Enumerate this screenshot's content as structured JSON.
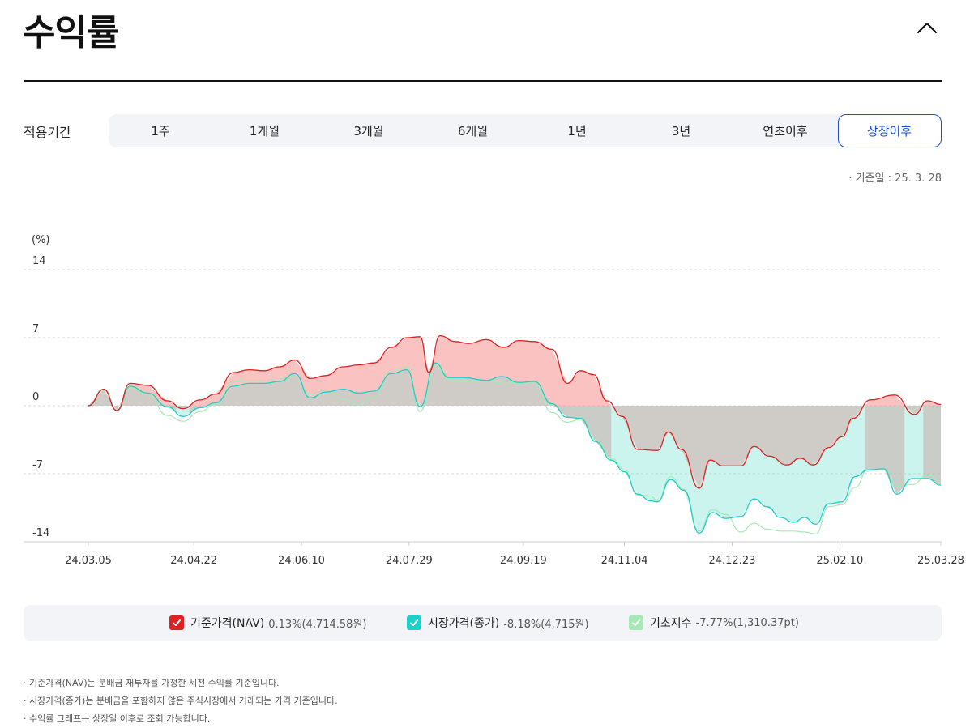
{
  "header": {
    "title": "수익률"
  },
  "period": {
    "label": "적용기간",
    "options": [
      "1주",
      "1개월",
      "3개월",
      "6개월",
      "1년",
      "3년",
      "연초이후",
      "상장이후"
    ],
    "selected": "상장이후"
  },
  "base_date": "· 기준일 : 25. 3. 28",
  "legend": [
    {
      "name": "기준가격(NAV)",
      "value": "0.13%(4,714.58원)",
      "color": "#e02020"
    },
    {
      "name": "시장가격(종가)",
      "value": "-8.18%(4,715원)",
      "color": "#1ccfc7"
    },
    {
      "name": "기초지수",
      "value": "-7.77%(1,310.37pt)",
      "color": "#a6e8b6"
    }
  ],
  "notes": [
    "기준가격(NAV)는 분배금 재투자를 가정한 세전 수익률 기준입니다.",
    "시장가격(종가)는 분배금을 포함하지 않은 주식시장에서 거래되는 가격 기준입니다.",
    "수익률 그래프는 상장일 이후로 조회 가능합니다."
  ],
  "chart_data": {
    "type": "area",
    "unit": "(%)",
    "ylim": [
      -14,
      14
    ],
    "yticks": [
      14,
      7,
      0,
      -7,
      -14
    ],
    "xlim": [
      0,
      388
    ],
    "xticks": [
      {
        "pos": 0,
        "label": "24.03.05"
      },
      {
        "pos": 48,
        "label": "24.04.22"
      },
      {
        "pos": 97,
        "label": "24.06.10"
      },
      {
        "pos": 146,
        "label": "24.07.29"
      },
      {
        "pos": 198,
        "label": "24.09.19"
      },
      {
        "pos": 244,
        "label": "24.11.04"
      },
      {
        "pos": 293,
        "label": "24.12.23"
      },
      {
        "pos": 342,
        "label": "25.02.10"
      },
      {
        "pos": 388,
        "label": "25.03.28"
      }
    ],
    "grid": "dashed-horizontal",
    "fill_between": "NAV vs 시장가격(종가)",
    "series": [
      {
        "name": "기준가격(NAV)",
        "color": "#e02020",
        "points": [
          [
            0,
            0
          ],
          [
            7,
            1.7
          ],
          [
            13,
            -0.5
          ],
          [
            19,
            2.3
          ],
          [
            27,
            2.1
          ],
          [
            36,
            0.5
          ],
          [
            43,
            -0.3
          ],
          [
            51,
            0.6
          ],
          [
            58,
            1.2
          ],
          [
            66,
            3.4
          ],
          [
            73,
            3.7
          ],
          [
            80,
            3.6
          ],
          [
            87,
            4.0
          ],
          [
            94,
            4.7
          ],
          [
            101,
            2.8
          ],
          [
            108,
            3.1
          ],
          [
            116,
            4.0
          ],
          [
            123,
            4.2
          ],
          [
            130,
            4.4
          ],
          [
            138,
            6.0
          ],
          [
            145,
            7.0
          ],
          [
            151,
            7.1
          ],
          [
            155,
            3.4
          ],
          [
            160,
            7.2
          ],
          [
            167,
            6.6
          ],
          [
            173,
            6.4
          ],
          [
            181,
            6.8
          ],
          [
            189,
            6.0
          ],
          [
            196,
            6.7
          ],
          [
            203,
            6.6
          ],
          [
            211,
            5.8
          ],
          [
            218,
            2.3
          ],
          [
            224,
            3.6
          ],
          [
            230,
            3.2
          ],
          [
            236,
            0.5
          ],
          [
            243,
            -1.1
          ],
          [
            250,
            -4.5
          ],
          [
            259,
            -4.6
          ],
          [
            264,
            -2.7
          ],
          [
            270,
            -4.5
          ],
          [
            278,
            -8.5
          ],
          [
            283,
            -5.6
          ],
          [
            289,
            -6.2
          ],
          [
            297,
            -6.2
          ],
          [
            303,
            -4.2
          ],
          [
            310,
            -5.2
          ],
          [
            318,
            -6.1
          ],
          [
            324,
            -5.4
          ],
          [
            330,
            -6.1
          ],
          [
            337,
            -4.3
          ],
          [
            343,
            -3.2
          ],
          [
            348,
            -1.3
          ],
          [
            356,
            0.6
          ],
          [
            367,
            1.1
          ],
          [
            376,
            -0.9
          ],
          [
            382,
            0.5
          ],
          [
            388,
            0.13
          ]
        ]
      },
      {
        "name": "시장가격(종가)",
        "color": "#1ccfc7",
        "points": [
          [
            0,
            0
          ],
          [
            7,
            1.7
          ],
          [
            13,
            -0.5
          ],
          [
            19,
            2.0
          ],
          [
            27,
            1.3
          ],
          [
            36,
            -0.1
          ],
          [
            43,
            -1.1
          ],
          [
            51,
            -0.2
          ],
          [
            58,
            0.3
          ],
          [
            66,
            2.0
          ],
          [
            73,
            2.3
          ],
          [
            80,
            2.3
          ],
          [
            87,
            2.5
          ],
          [
            94,
            3.3
          ],
          [
            101,
            0.8
          ],
          [
            108,
            1.4
          ],
          [
            116,
            1.7
          ],
          [
            123,
            1.3
          ],
          [
            130,
            1.5
          ],
          [
            138,
            3.3
          ],
          [
            145,
            3.7
          ],
          [
            151,
            -0.1
          ],
          [
            158,
            4.4
          ],
          [
            164,
            2.9
          ],
          [
            171,
            2.9
          ],
          [
            181,
            2.6
          ],
          [
            188,
            3.0
          ],
          [
            196,
            2.4
          ],
          [
            203,
            2.5
          ],
          [
            211,
            0.2
          ],
          [
            218,
            -1.2
          ],
          [
            224,
            -1.3
          ],
          [
            231,
            -3.7
          ],
          [
            238,
            -5.6
          ],
          [
            244,
            -6.8
          ],
          [
            250,
            -9.1
          ],
          [
            256,
            -9.8
          ],
          [
            259,
            -9.9
          ],
          [
            265,
            -7.6
          ],
          [
            271,
            -8.7
          ],
          [
            278,
            -13.1
          ],
          [
            284,
            -11.0
          ],
          [
            290,
            -11.6
          ],
          [
            297,
            -11.4
          ],
          [
            303,
            -9.6
          ],
          [
            309,
            -10.4
          ],
          [
            315,
            -11.5
          ],
          [
            321,
            -12.0
          ],
          [
            326,
            -11.5
          ],
          [
            331,
            -12.2
          ],
          [
            337,
            -10.1
          ],
          [
            343,
            -9.9
          ],
          [
            349,
            -7.3
          ],
          [
            355,
            -6.6
          ],
          [
            362,
            -6.5
          ],
          [
            368,
            -9.1
          ],
          [
            375,
            -7.5
          ],
          [
            382,
            -7.5
          ],
          [
            388,
            -8.18
          ]
        ]
      },
      {
        "name": "기초지수",
        "color": "#a6e8b6",
        "points": [
          [
            0,
            0
          ],
          [
            7,
            1.6
          ],
          [
            13,
            -0.4
          ],
          [
            19,
            1.9
          ],
          [
            27,
            1.1
          ],
          [
            36,
            -1.0
          ],
          [
            43,
            -1.6
          ],
          [
            51,
            -0.6
          ],
          [
            58,
            0.2
          ],
          [
            66,
            2.5
          ],
          [
            73,
            2.6
          ],
          [
            80,
            2.6
          ],
          [
            87,
            2.8
          ],
          [
            94,
            3.0
          ],
          [
            101,
            1.2
          ],
          [
            108,
            1.6
          ],
          [
            116,
            0.7
          ],
          [
            123,
            0.1
          ],
          [
            130,
            0.9
          ],
          [
            138,
            3.6
          ],
          [
            145,
            4.0
          ],
          [
            151,
            -0.6
          ],
          [
            158,
            4.2
          ],
          [
            164,
            2.6
          ],
          [
            171,
            2.5
          ],
          [
            181,
            2.8
          ],
          [
            188,
            2.3
          ],
          [
            196,
            2.4
          ],
          [
            203,
            2.4
          ],
          [
            211,
            -0.7
          ],
          [
            218,
            -1.7
          ],
          [
            224,
            -1.4
          ],
          [
            231,
            -3.5
          ],
          [
            238,
            -5.4
          ],
          [
            244,
            -6.6
          ],
          [
            250,
            -9.2
          ],
          [
            256,
            -9.3
          ],
          [
            259,
            -9.8
          ],
          [
            265,
            -7.3
          ],
          [
            271,
            -8.6
          ],
          [
            278,
            -12.9
          ],
          [
            284,
            -10.7
          ],
          [
            290,
            -11.2
          ],
          [
            297,
            -13.0
          ],
          [
            303,
            -12.1
          ],
          [
            309,
            -12.7
          ],
          [
            315,
            -12.9
          ],
          [
            321,
            -12.9
          ],
          [
            326,
            -13.0
          ],
          [
            331,
            -13.2
          ],
          [
            337,
            -10.4
          ],
          [
            343,
            -10.2
          ],
          [
            349,
            -8.4
          ],
          [
            355,
            -6.5
          ],
          [
            362,
            -6.6
          ],
          [
            368,
            -8.3
          ],
          [
            375,
            -8.1
          ],
          [
            382,
            -7.1
          ],
          [
            388,
            -7.77
          ]
        ]
      }
    ]
  }
}
